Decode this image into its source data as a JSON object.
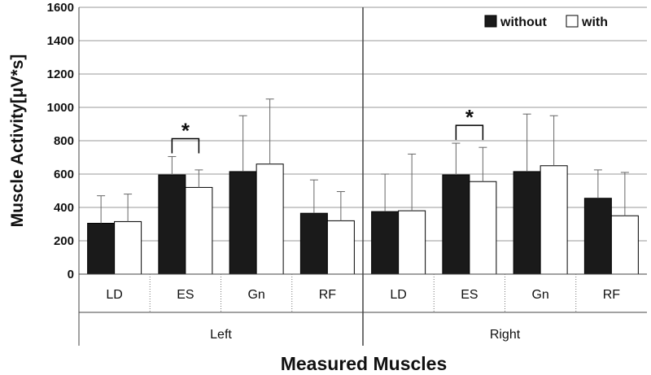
{
  "chart_data": {
    "type": "bar",
    "ylabel": "Muscle Activity[μV*s]",
    "xlabel": "Measured Muscles",
    "ylim": [
      0,
      1600
    ],
    "yticks": [
      "0",
      "200",
      "400",
      "600",
      "800",
      "1000",
      "1200",
      "1400",
      "1600"
    ],
    "grid": true,
    "legend_position": "top-right",
    "groups": [
      {
        "label": "Left",
        "categories": [
          "LD",
          "ES",
          "Gn",
          "RF"
        ]
      },
      {
        "label": "Right",
        "categories": [
          "LD",
          "ES",
          "Gn",
          "RF"
        ]
      }
    ],
    "series": [
      {
        "name": "without",
        "color": "#1a1a1a",
        "values": [
          305,
          595,
          615,
          365,
          375,
          595,
          615,
          455
        ],
        "errors": [
          165,
          110,
          335,
          200,
          225,
          190,
          345,
          170
        ]
      },
      {
        "name": "with",
        "color": "#ffffff",
        "values": [
          315,
          520,
          660,
          320,
          380,
          555,
          650,
          350
        ],
        "errors": [
          165,
          105,
          390,
          175,
          340,
          205,
          300,
          260
        ]
      }
    ],
    "significance": [
      {
        "category_index": 1,
        "label": "*"
      },
      {
        "category_index": 5,
        "label": "*"
      }
    ]
  }
}
